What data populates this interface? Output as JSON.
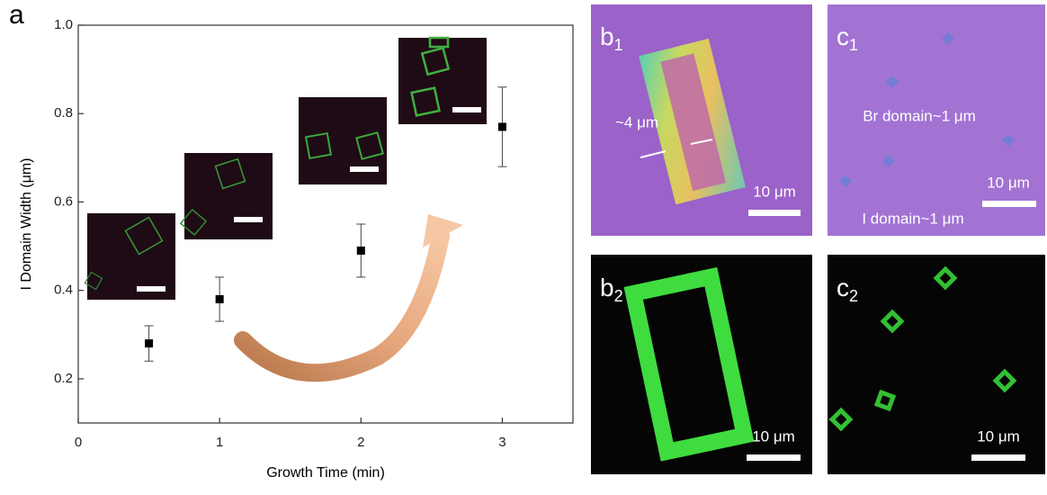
{
  "chart_data": {
    "type": "scatter",
    "panel_label": "a",
    "xlabel": "Growth Time (min)",
    "ylabel": "I Domain Width (μm)",
    "x": [
      0.5,
      1,
      2,
      3
    ],
    "values": [
      0.28,
      0.38,
      0.49,
      0.77
    ],
    "errors": [
      0.04,
      0.05,
      0.06,
      0.09
    ],
    "color": "#000000",
    "xlim": [
      0,
      3.5
    ],
    "xticks": [
      0,
      1,
      2,
      3
    ],
    "ylim": [
      0.1,
      1.0
    ],
    "yticks": [
      0.2,
      0.4,
      0.6,
      0.8,
      {
        "value": 1.0,
        "label": "1.0"
      }
    ]
  },
  "panels": [
    {
      "letter": "b",
      "subscript": "1",
      "texts": [
        "~4 μm",
        "10 μm"
      ]
    },
    {
      "letter": "c",
      "subscript": "1",
      "texts": [
        "Br domain~1 μm",
        "10 μm",
        "I domain~1 μm"
      ]
    },
    {
      "letter": "b",
      "subscript": "2",
      "texts": [
        "10 μm"
      ]
    },
    {
      "letter": "c",
      "subscript": "2",
      "texts": [
        "10 μm"
      ]
    }
  ]
}
